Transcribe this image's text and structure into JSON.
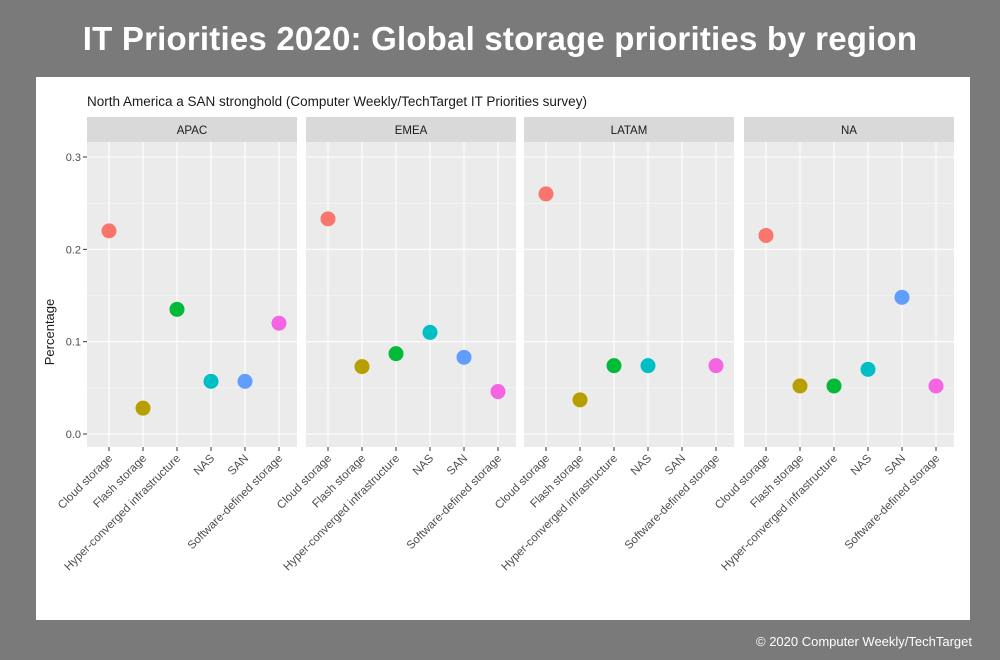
{
  "page": {
    "title": "IT Priorities 2020: Global storage priorities by region",
    "copyright": "© 2020 Computer Weekly/TechTarget"
  },
  "chart_data": {
    "type": "scatter",
    "title": "North America a SAN stronghold (Computer Weekly/TechTarget IT Priorities survey)",
    "ylabel": "Percentage",
    "xlabel": "",
    "ylim": [
      0,
      0.3
    ],
    "yticks": [
      "0.0",
      "0.1",
      "0.2",
      "0.3"
    ],
    "grid": true,
    "legend": "none",
    "categories": [
      "Cloud storage",
      "Flash storage",
      "Hyper-converged infrastructure",
      "NAS",
      "SAN",
      "Software-defined storage"
    ],
    "category_colors": [
      "#F8766D",
      "#B79F00",
      "#00BA38",
      "#00BFC4",
      "#619CFF",
      "#F564E3"
    ],
    "facets": [
      {
        "name": "APAC",
        "values": [
          0.22,
          0.028,
          0.135,
          0.057,
          0.057,
          0.12
        ]
      },
      {
        "name": "EMEA",
        "values": [
          0.233,
          0.073,
          0.087,
          0.11,
          0.083,
          0.046
        ]
      },
      {
        "name": "LATAM",
        "values": [
          0.26,
          0.037,
          0.074,
          0.074,
          null,
          0.074
        ]
      },
      {
        "name": "NA",
        "values": [
          0.215,
          0.052,
          0.052,
          0.07,
          0.148,
          0.052
        ]
      }
    ]
  }
}
